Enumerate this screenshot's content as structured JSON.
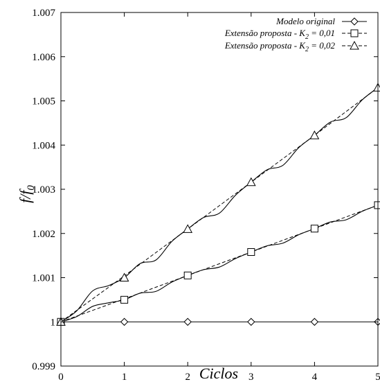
{
  "chart_data": {
    "type": "line",
    "xlabel": "Ciclos",
    "ylabel": "f/f0",
    "ylabel_parts": {
      "main": "f/f",
      "sub": "0"
    },
    "xlim": [
      0,
      5
    ],
    "ylim": [
      0.999,
      1.007
    ],
    "xticks": [
      "0",
      "1",
      "2",
      "3",
      "4",
      "5"
    ],
    "yticks": [
      "0.999",
      "1",
      "1.001",
      "1.002",
      "1.003",
      "1.004",
      "1.005",
      "1.006",
      "1.007"
    ],
    "grid": false,
    "legend_position": "top-right",
    "legend": [
      {
        "text": "Modelo original",
        "marker": "diamond"
      },
      {
        "text": "Extensão proposta - K2 = 0,01",
        "parts": [
          "Extensão proposta - K",
          "2",
          " = 0,01"
        ],
        "marker": "square"
      },
      {
        "text": "Extensão proposta - K2 = 0,02",
        "parts": [
          "Extensão proposta - K",
          "2",
          " = 0,02"
        ],
        "marker": "triangle"
      }
    ],
    "series": [
      {
        "name": "Modelo original",
        "marker": "diamond",
        "x": [
          0,
          1,
          2,
          3,
          4,
          5
        ],
        "y": [
          1.0,
          1.0,
          1.0,
          1.0,
          1.0,
          1.0
        ]
      },
      {
        "name": "Extensão proposta - K2 = 0,01",
        "marker": "square",
        "markers_x": [
          0,
          1,
          2,
          3,
          4,
          5
        ],
        "markers_y": [
          1.0,
          1.0005,
          1.00105,
          1.00158,
          1.00211,
          1.00264
        ],
        "solid_x": [
          0,
          0.25,
          0.5,
          0.75,
          1,
          1.25,
          1.5,
          1.75,
          2,
          2.25,
          2.5,
          2.75,
          3,
          3.25,
          3.5,
          3.75,
          4,
          4.25,
          4.5,
          4.75,
          5
        ],
        "solid_y": [
          1.0,
          1.00012,
          1.00035,
          1.00043,
          1.0005,
          1.00065,
          1.00069,
          1.0009,
          1.00105,
          1.00118,
          1.00124,
          1.00143,
          1.00158,
          1.00172,
          1.00178,
          1.00197,
          1.00211,
          1.00226,
          1.00231,
          1.0025,
          1.00264
        ],
        "dashed_x": [
          0,
          1,
          2,
          3,
          4,
          5
        ],
        "dashed_y": [
          1.0,
          1.00052,
          1.00105,
          1.00158,
          1.00211,
          1.00264
        ]
      },
      {
        "name": "Extensão proposta - K2 = 0,02",
        "marker": "triangle",
        "markers_x": [
          0,
          1,
          2,
          3,
          4,
          5
        ],
        "markers_y": [
          1.0,
          1.001,
          1.0021,
          1.00316,
          1.00422,
          1.0053
        ],
        "solid_x": [
          0,
          0.25,
          0.5,
          0.75,
          1,
          1.25,
          1.5,
          1.75,
          2,
          2.25,
          2.5,
          2.75,
          3,
          3.25,
          3.5,
          3.75,
          4,
          4.25,
          4.5,
          4.75,
          5
        ],
        "solid_y": [
          1.0,
          1.00025,
          1.0007,
          1.00082,
          1.001,
          1.00132,
          1.0014,
          1.00182,
          1.0021,
          1.00236,
          1.00246,
          1.00286,
          1.00316,
          1.00344,
          1.00354,
          1.00394,
          1.00422,
          1.00452,
          1.00462,
          1.00502,
          1.0053
        ],
        "dashed_x": [
          0,
          1,
          2,
          3,
          4,
          5
        ],
        "dashed_y": [
          1.0,
          1.00104,
          1.0021,
          1.00316,
          1.00422,
          1.0053
        ]
      }
    ]
  }
}
